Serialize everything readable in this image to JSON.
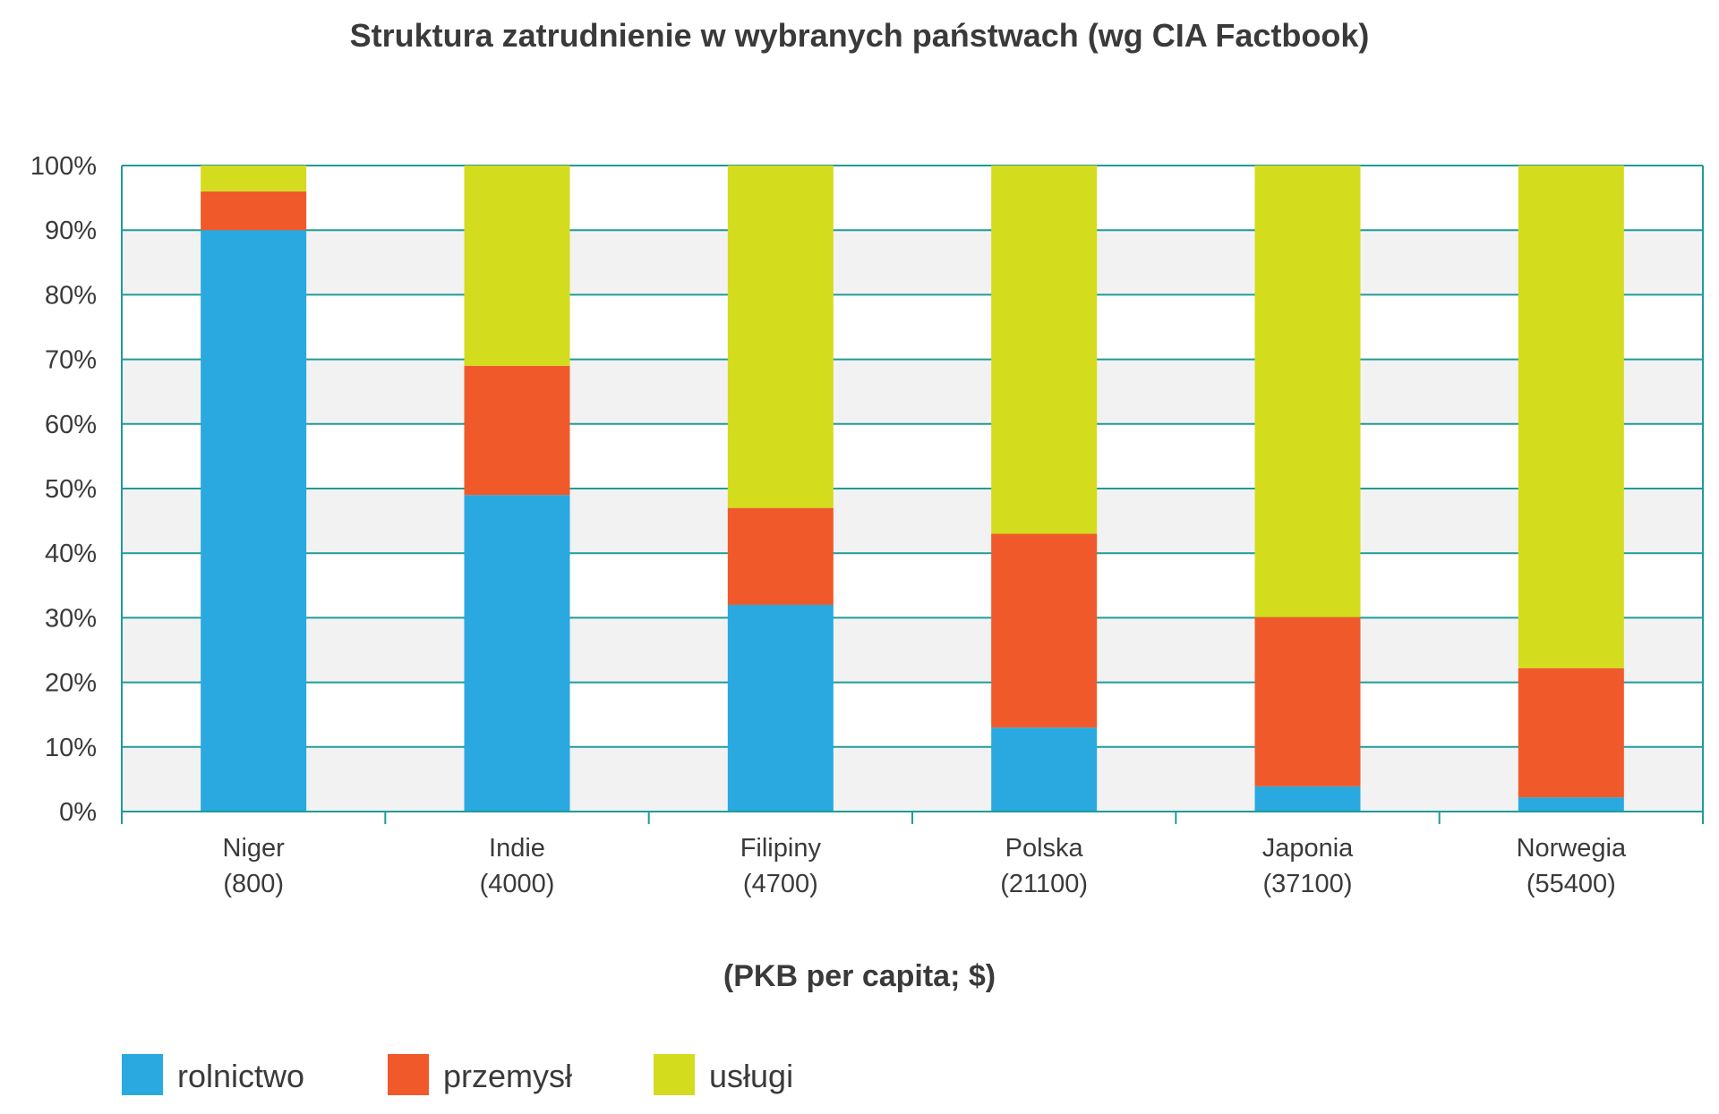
{
  "chart_data": {
    "type": "bar",
    "stacked": true,
    "title": "Struktura zatrudnienie w wybranych państwach (wg CIA Factbook)",
    "xlabel": "(PKB per capita; $)",
    "ylabel": "",
    "ylim": [
      0,
      100
    ],
    "y_ticks": [
      "0%",
      "10%",
      "20%",
      "30%",
      "40%",
      "50%",
      "60%",
      "70%",
      "80%",
      "90%",
      "100%"
    ],
    "categories": [
      {
        "name": "Niger",
        "gdp": "(800)"
      },
      {
        "name": "Indie",
        "gdp": "(4000)"
      },
      {
        "name": "Filipiny",
        "gdp": "(4700)"
      },
      {
        "name": "Polska",
        "gdp": "(21100)"
      },
      {
        "name": "Japonia",
        "gdp": "(37100)"
      },
      {
        "name": "Norwegia",
        "gdp": "(55400)"
      }
    ],
    "series": [
      {
        "name": "rolnictwo",
        "color": "#29a9e0",
        "values": [
          90,
          49,
          32,
          13,
          3.9,
          2.2
        ]
      },
      {
        "name": "przemysł",
        "color": "#f05a2b",
        "values": [
          6,
          20,
          15,
          30,
          26.2,
          20
        ]
      },
      {
        "name": "usługi",
        "color": "#d4dc1e",
        "values": [
          4,
          31,
          53,
          57,
          69.9,
          77.8
        ]
      }
    ],
    "grid": true,
    "legend_position": "bottom-left",
    "colors": {
      "axis": "#1f9c99",
      "band": "#f2f2f2",
      "text": "#3a3a3a"
    }
  }
}
